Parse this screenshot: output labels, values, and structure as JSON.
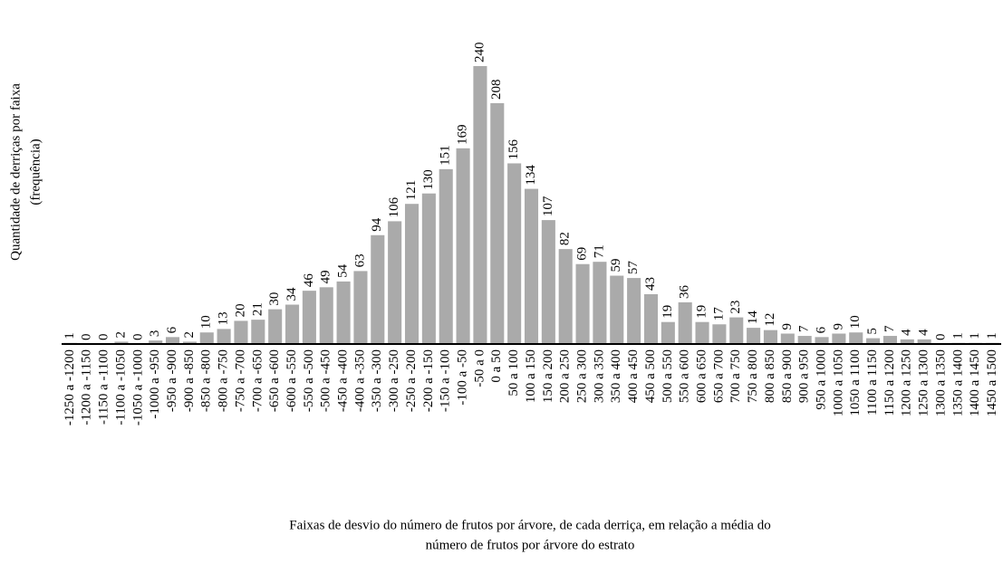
{
  "chart_data": {
    "type": "bar",
    "y_label": [
      "Quantidade de derriças por faixa",
      "(frequência)"
    ],
    "x_label": [
      "Faixas de desvio do número de frutos por árvore, de cada derriça, em relação a média do",
      "número de frutos por árvore do estrato"
    ],
    "categories": [
      "-1250 a -1200",
      "-1200 a -1150",
      "-1150 a -1100",
      "-1100 a -1050",
      "-1050 a -1000",
      "-1000 a -950",
      "-950 a -900",
      "-900 a -850",
      "-850 a -800",
      "-800 a -750",
      "-750 a -700",
      "-700 a -650",
      "-650 a -600",
      "-600 a -550",
      "-550 a -500",
      "-500 a -450",
      "-450 a -400",
      "-400 a -350",
      "-350 a -300",
      "-300 a -250",
      "-250 a -200",
      "-200 a -150",
      "-150 a -100",
      "-100 a -50",
      "-50 a 0",
      "0 a 50",
      "50 a 100",
      "100 a 150",
      "150 a 200",
      "200 a 250",
      "250 a 300",
      "300 a 350",
      "350 a 400",
      "400 a 450",
      "450 a 500",
      "500 a 550",
      "550 a 600",
      "600 a 650",
      "650 a 700",
      "700 a 750",
      "750 a 800",
      "800 a 850",
      "850 a 900",
      "900 a 950",
      "950 a 1000",
      "1000 a 1050",
      "1050 a 1100",
      "1100 a 1150",
      "1150 a 1200",
      "1200 a 1250",
      "1250 a 1300",
      "1300 a 1350",
      "1350 a 1400",
      "1400 a 1450",
      "1450 a 1500"
    ],
    "values": [
      1,
      0,
      0,
      2,
      0,
      3,
      6,
      2,
      10,
      13,
      20,
      21,
      30,
      34,
      46,
      49,
      54,
      63,
      94,
      106,
      121,
      130,
      151,
      169,
      240,
      208,
      156,
      134,
      107,
      82,
      69,
      71,
      59,
      57,
      43,
      19,
      36,
      19,
      17,
      23,
      14,
      12,
      9,
      7,
      6,
      9,
      10,
      5,
      7,
      4,
      4,
      0,
      1,
      1,
      1
    ],
    "color": "#aaaaaa",
    "ylim": [
      0,
      240
    ]
  }
}
